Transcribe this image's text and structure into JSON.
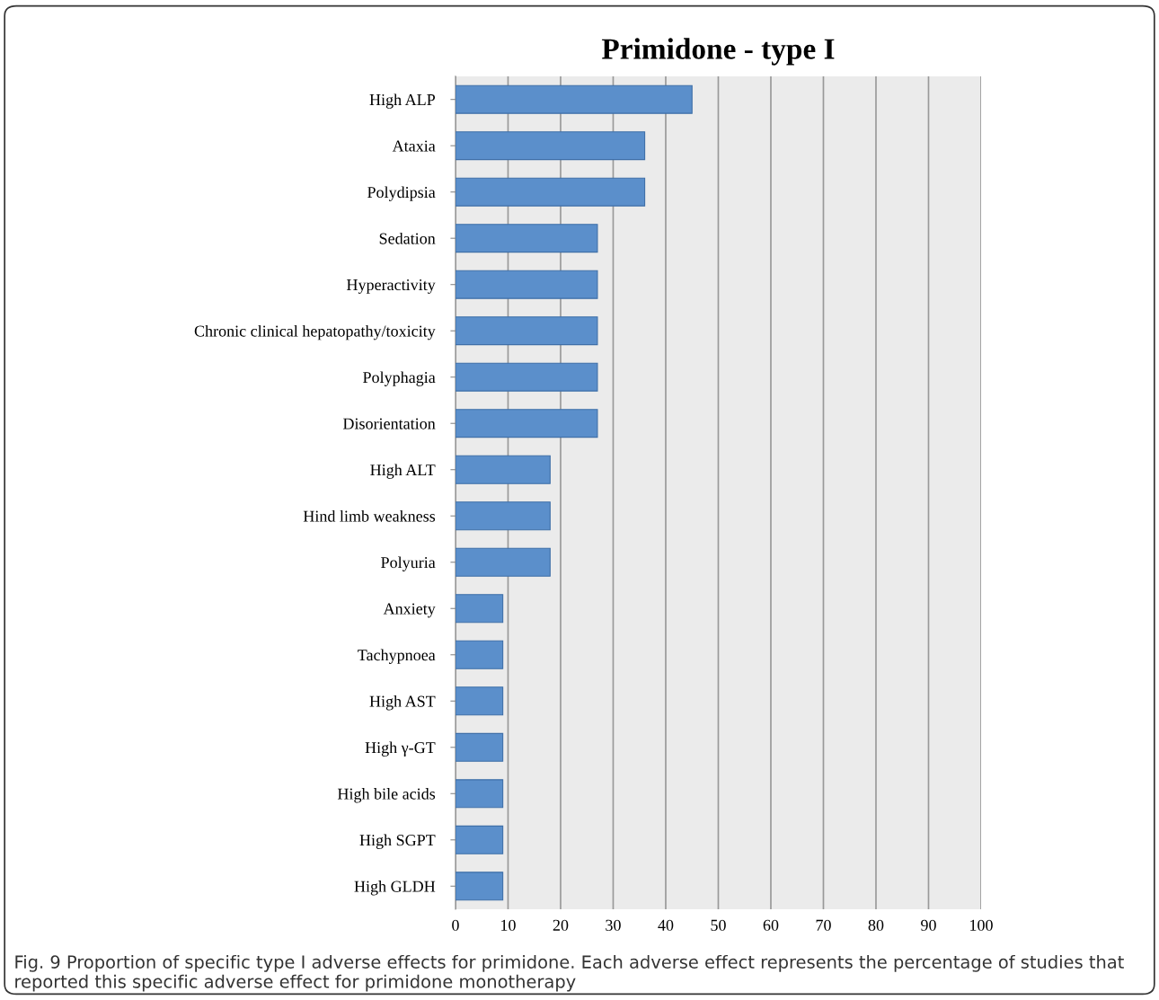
{
  "chart_data": {
    "type": "bar",
    "orientation": "horizontal",
    "title": "Primidone - type I",
    "categories": [
      "High ALP",
      "Ataxia",
      "Polydipsia",
      "Sedation",
      "Hyperactivity",
      "Chronic clinical hepatopathy/toxicity",
      "Polyphagia",
      "Disorientation",
      "High ALT",
      "Hind limb weakness",
      "Polyuria",
      "Anxiety",
      "Tachypnoea",
      "High AST",
      "High γ-GT",
      "High bile acids",
      "High SGPT",
      "High GLDH"
    ],
    "values": [
      45,
      36,
      36,
      27,
      27,
      27,
      27,
      27,
      18,
      18,
      18,
      9,
      9,
      9,
      9,
      9,
      9,
      9
    ],
    "color": "#5b8fcb",
    "xlim": [
      0,
      100
    ],
    "xticks": [
      0,
      10,
      20,
      30,
      40,
      50,
      60,
      70,
      80,
      90,
      100
    ],
    "grid": "x",
    "legend": false,
    "annotations": [
      "Fig. 9 Proportion of specific type I adverse effects for primidone. Each adverse effect represents the percentage of studies that reported this specific adverse effect for primidone monotherapy"
    ]
  }
}
